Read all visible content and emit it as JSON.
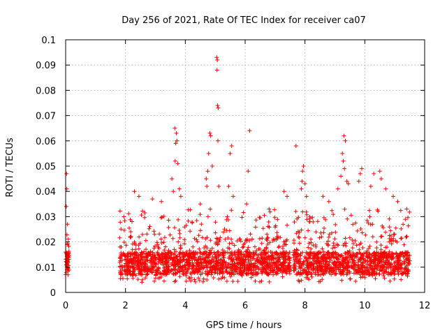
{
  "chart_data": {
    "type": "scatter",
    "title": "Day 256 of 2021, Rate Of TEC Index for receiver ca07",
    "xlabel": "GPS time / hours",
    "ylabel": "ROTI / TECUs",
    "xlim": [
      0,
      12
    ],
    "ylim": [
      0,
      0.1
    ],
    "grid": true,
    "marker": "+",
    "color": "#ff0000",
    "x_ticks": [
      "0",
      "2",
      "4",
      "6",
      "8",
      "10",
      "12"
    ],
    "x_tick_values": [
      0,
      2,
      4,
      6,
      8,
      10,
      12
    ],
    "y_ticks": [
      "0",
      "0.01",
      "0.02",
      "0.03",
      "0.04",
      "0.05",
      "0.06",
      "0.07",
      "0.08",
      "0.09",
      "0.1"
    ],
    "y_tick_values": [
      0,
      0.01,
      0.02,
      0.03,
      0.04,
      0.05,
      0.06,
      0.07,
      0.08,
      0.09,
      0.1
    ],
    "segments": [
      {
        "x_start": 0.0,
        "x_end": 0.12,
        "typical_min": 0.006,
        "typical_max": 0.02
      },
      {
        "x_start": 1.8,
        "x_end": 7.5,
        "typical_min": 0.004,
        "typical_max": 0.03
      },
      {
        "x_start": 7.6,
        "x_end": 11.5,
        "typical_min": 0.004,
        "typical_max": 0.03
      }
    ],
    "series": [
      {
        "name": "ROTI",
        "points": [
          [
            0.03,
            0.047
          ],
          [
            0.04,
            0.041
          ],
          [
            0.02,
            0.034
          ],
          [
            0.06,
            0.027
          ],
          [
            0.05,
            0.019
          ],
          [
            0.07,
            0.015
          ],
          [
            0.03,
            0.012
          ],
          [
            0.05,
            0.009
          ],
          [
            0.08,
            0.007
          ],
          [
            0.02,
            0.011
          ],
          [
            3.65,
            0.065
          ],
          [
            3.7,
            0.063
          ],
          [
            3.72,
            0.06
          ],
          [
            3.68,
            0.059
          ],
          [
            3.66,
            0.052
          ],
          [
            3.75,
            0.051
          ],
          [
            3.55,
            0.045
          ],
          [
            3.6,
            0.04
          ],
          [
            3.8,
            0.041
          ],
          [
            3.85,
            0.038
          ],
          [
            4.82,
            0.063
          ],
          [
            4.85,
            0.062
          ],
          [
            4.78,
            0.055
          ],
          [
            4.75,
            0.048
          ],
          [
            4.7,
            0.045
          ],
          [
            4.72,
            0.042
          ],
          [
            4.9,
            0.05
          ],
          [
            5.05,
            0.093
          ],
          [
            5.07,
            0.092
          ],
          [
            5.06,
            0.088
          ],
          [
            5.08,
            0.074
          ],
          [
            5.1,
            0.073
          ],
          [
            5.09,
            0.06
          ],
          [
            5.12,
            0.042
          ],
          [
            5.5,
            0.055
          ],
          [
            5.55,
            0.058
          ],
          [
            5.45,
            0.042
          ],
          [
            5.6,
            0.038
          ],
          [
            6.15,
            0.064
          ],
          [
            6.1,
            0.048
          ],
          [
            6.05,
            0.035
          ],
          [
            7.7,
            0.058
          ],
          [
            7.95,
            0.05
          ],
          [
            7.92,
            0.048
          ],
          [
            7.9,
            0.044
          ],
          [
            7.88,
            0.041
          ],
          [
            8.0,
            0.043
          ],
          [
            8.05,
            0.038
          ],
          [
            9.3,
            0.062
          ],
          [
            9.35,
            0.06
          ],
          [
            9.25,
            0.055
          ],
          [
            9.28,
            0.052
          ],
          [
            9.32,
            0.049
          ],
          [
            9.2,
            0.046
          ],
          [
            9.4,
            0.044
          ],
          [
            9.45,
            0.043
          ],
          [
            9.1,
            0.041
          ],
          [
            9.9,
            0.049
          ],
          [
            9.85,
            0.047
          ],
          [
            9.8,
            0.044
          ],
          [
            10.3,
            0.047
          ],
          [
            10.5,
            0.048
          ],
          [
            10.55,
            0.045
          ],
          [
            10.2,
            0.042
          ],
          [
            10.7,
            0.041
          ],
          [
            11.1,
            0.036
          ],
          [
            11.4,
            0.033
          ],
          [
            2.3,
            0.04
          ],
          [
            2.45,
            0.038
          ],
          [
            2.9,
            0.037
          ],
          [
            3.2,
            0.036
          ],
          [
            4.5,
            0.035
          ],
          [
            6.8,
            0.033
          ],
          [
            7.3,
            0.04
          ],
          [
            7.4,
            0.038
          ],
          [
            8.6,
            0.038
          ],
          [
            8.8,
            0.036
          ],
          [
            10.95,
            0.038
          ]
        ]
      }
    ]
  }
}
